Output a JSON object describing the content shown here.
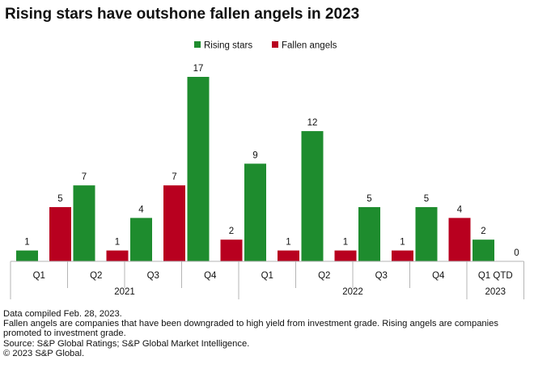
{
  "chart_data": {
    "type": "bar",
    "title": "Rising stars have outshone fallen angels in 2023",
    "xlabel": "",
    "ylabel": "",
    "ylim": [
      0,
      17
    ],
    "grid": false,
    "legend": "top-center",
    "categories": [
      {
        "label": "Q1",
        "year": "2021"
      },
      {
        "label": "Q2",
        "year": "2021"
      },
      {
        "label": "Q3",
        "year": "2021"
      },
      {
        "label": "Q4",
        "year": "2021"
      },
      {
        "label": "Q1",
        "year": "2022"
      },
      {
        "label": "Q2",
        "year": "2022"
      },
      {
        "label": "Q3",
        "year": "2022"
      },
      {
        "label": "Q4",
        "year": "2022"
      },
      {
        "label": "Q1 QTD",
        "year": "2023"
      }
    ],
    "groups": [
      "2021",
      "2022",
      "2023"
    ],
    "series": [
      {
        "name": "Rising stars",
        "color": "#1e8c2e",
        "values": [
          1,
          7,
          4,
          17,
          9,
          12,
          5,
          5,
          2
        ]
      },
      {
        "name": "Fallen angels",
        "color": "#b8001f",
        "values": [
          5,
          1,
          7,
          2,
          1,
          1,
          1,
          4,
          0
        ]
      }
    ]
  },
  "footer": {
    "lines": [
      "Data compiled Feb. 28, 2023.",
      "Fallen angels are companies that have been downgraded to high yield from investment grade. Rising angels are companies promoted to investment grade.",
      "Source: S&P Global Ratings; S&P Global Market Intelligence.",
      "© 2023 S&P Global."
    ]
  }
}
